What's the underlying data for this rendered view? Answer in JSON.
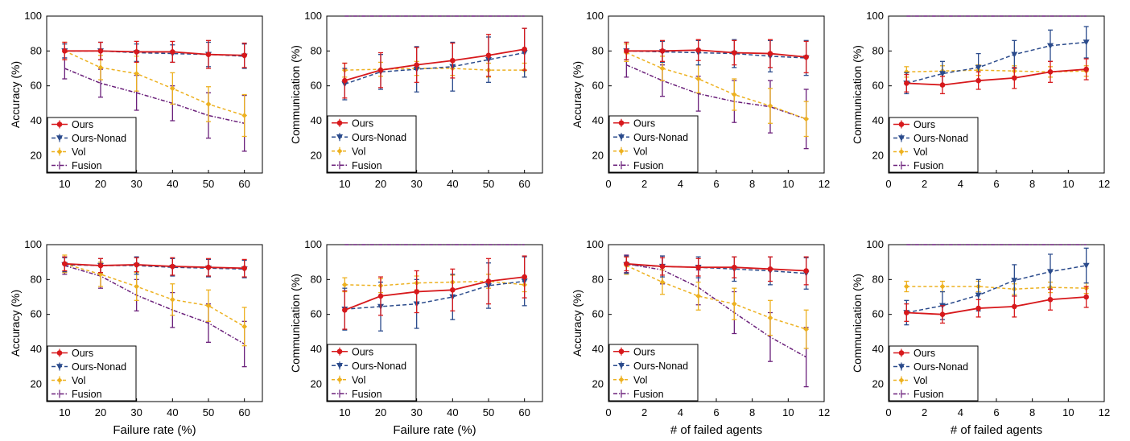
{
  "colors": {
    "ours": "#d7191c",
    "nonad": "#2b4b8c",
    "vol": "#edb120",
    "fusion": "#6a1f7a"
  },
  "legend_labels": [
    "Ours",
    "Ours-Nonad",
    "Vol",
    "Fusion"
  ],
  "chart_data": [
    {
      "type": "line",
      "xlabel": "",
      "ylabel": "Accuracy (%)",
      "x": [
        10,
        20,
        30,
        40,
        50,
        60
      ],
      "xlim": [
        5,
        65
      ],
      "xticks": [
        10,
        20,
        30,
        40,
        50,
        60
      ],
      "ylim": [
        10,
        100
      ],
      "yticks": [
        20,
        40,
        60,
        80,
        100
      ],
      "series": [
        {
          "name": "Ours",
          "values": [
            80,
            80,
            79.5,
            79.5,
            78,
            77.5
          ],
          "errors": [
            5,
            5,
            6,
            6,
            8,
            7
          ]
        },
        {
          "name": "Ours-Nonad",
          "values": [
            80,
            80,
            79,
            78.5,
            78,
            77
          ],
          "errors": [
            4,
            5,
            5,
            5,
            7,
            7
          ]
        },
        {
          "name": "Vol",
          "values": [
            80,
            70.5,
            67,
            58.5,
            49.5,
            43
          ],
          "errors": [
            5,
            7,
            10,
            9,
            10,
            12
          ]
        },
        {
          "name": "Fusion",
          "values": [
            70,
            61.5,
            56,
            50,
            43,
            38.5
          ],
          "errors": [
            6,
            8,
            10,
            10,
            13,
            16
          ]
        }
      ]
    },
    {
      "type": "line",
      "xlabel": "",
      "ylabel": "Communication (%)",
      "x": [
        10,
        20,
        30,
        40,
        50,
        60
      ],
      "xlim": [
        5,
        65
      ],
      "xticks": [
        10,
        20,
        30,
        40,
        50,
        60
      ],
      "ylim": [
        10,
        100
      ],
      "yticks": [
        20,
        40,
        60,
        80,
        100
      ],
      "series": [
        {
          "name": "Ours",
          "values": [
            63,
            69,
            72,
            74.5,
            77.5,
            81
          ],
          "errors": [
            10,
            10,
            10,
            10,
            12,
            12
          ]
        },
        {
          "name": "Ours-Nonad",
          "values": [
            61,
            68,
            69.5,
            71,
            75,
            79
          ],
          "errors": [
            9,
            10,
            13,
            14,
            13,
            14
          ]
        },
        {
          "name": "Vol",
          "values": [
            69,
            69.5,
            70,
            70,
            69,
            69
          ],
          "errors": [
            4,
            4,
            4,
            4,
            4,
            4
          ]
        },
        {
          "name": "Fusion",
          "values": [
            100,
            100,
            100,
            100,
            100,
            100
          ],
          "errors": [
            0,
            0,
            0,
            0,
            0,
            0
          ]
        }
      ]
    },
    {
      "type": "line",
      "xlabel": "",
      "ylabel": "Accuracy (%)",
      "x": [
        1,
        3,
        5,
        7,
        9,
        11
      ],
      "xlim": [
        0,
        12
      ],
      "xticks": [
        0,
        2,
        4,
        6,
        8,
        10,
        12
      ],
      "ylim": [
        10,
        100
      ],
      "yticks": [
        20,
        40,
        60,
        80,
        100
      ],
      "series": [
        {
          "name": "Ours",
          "values": [
            80,
            80,
            80.5,
            79,
            78.5,
            76.5
          ],
          "errors": [
            5,
            6,
            6,
            7,
            8,
            9
          ]
        },
        {
          "name": "Ours-Nonad",
          "values": [
            80,
            79.5,
            79,
            78.5,
            77,
            76
          ],
          "errors": [
            5,
            6,
            7,
            8,
            9,
            10
          ]
        },
        {
          "name": "Vol",
          "values": [
            79,
            70,
            64,
            55,
            48.5,
            41
          ],
          "errors": [
            5,
            7,
            8,
            9,
            10,
            10
          ]
        },
        {
          "name": "Fusion",
          "values": [
            72,
            63,
            55.5,
            51,
            48,
            41
          ],
          "errors": [
            7,
            9,
            10,
            12,
            15,
            17
          ]
        }
      ]
    },
    {
      "type": "line",
      "xlabel": "",
      "ylabel": "Communication (%)",
      "x": [
        1,
        3,
        5,
        7,
        9,
        11
      ],
      "xlim": [
        0,
        12
      ],
      "xticks": [
        0,
        2,
        4,
        6,
        8,
        10,
        12
      ],
      "ylim": [
        10,
        100
      ],
      "yticks": [
        20,
        40,
        60,
        80,
        100
      ],
      "series": [
        {
          "name": "Ours",
          "values": [
            61.5,
            60.5,
            63,
            64.5,
            68,
            69.5
          ],
          "errors": [
            5,
            5,
            5,
            6,
            6,
            6
          ]
        },
        {
          "name": "Ours-Nonad",
          "values": [
            61.5,
            67,
            70.5,
            78,
            83,
            85
          ],
          "errors": [
            6,
            7,
            8,
            8,
            9,
            9
          ]
        },
        {
          "name": "Vol",
          "values": [
            68,
            68.5,
            69,
            68.5,
            68,
            68.5
          ],
          "errors": [
            3,
            3,
            3,
            3,
            3,
            3
          ]
        },
        {
          "name": "Fusion",
          "values": [
            100,
            100,
            100,
            100,
            100,
            100
          ],
          "errors": [
            0,
            0,
            0,
            0,
            0,
            0
          ]
        }
      ]
    },
    {
      "type": "line",
      "xlabel": "Failure rate (%)",
      "ylabel": "Accuracy (%)",
      "x": [
        10,
        20,
        30,
        40,
        50,
        60
      ],
      "xlim": [
        5,
        65
      ],
      "xticks": [
        10,
        20,
        30,
        40,
        50,
        60
      ],
      "ylim": [
        10,
        100
      ],
      "yticks": [
        20,
        40,
        60,
        80,
        100
      ],
      "series": [
        {
          "name": "Ours",
          "values": [
            89,
            88,
            88.5,
            87.5,
            87,
            86.5
          ],
          "errors": [
            4,
            4,
            4,
            5,
            5,
            5
          ]
        },
        {
          "name": "Ours-Nonad",
          "values": [
            88.5,
            88,
            88,
            87,
            86.5,
            86
          ],
          "errors": [
            4,
            4,
            5,
            5,
            5,
            5
          ]
        },
        {
          "name": "Vol",
          "values": [
            89,
            83,
            76,
            68.5,
            65,
            53
          ],
          "errors": [
            5,
            7,
            8,
            9,
            9,
            11
          ]
        },
        {
          "name": "Fusion",
          "values": [
            88,
            82,
            71,
            62.5,
            55,
            43
          ],
          "errors": [
            5,
            7,
            9,
            10,
            11,
            13
          ]
        }
      ]
    },
    {
      "type": "line",
      "xlabel": "Failure rate (%)",
      "ylabel": "Communication (%)",
      "x": [
        10,
        20,
        30,
        40,
        50,
        60
      ],
      "xlim": [
        5,
        65
      ],
      "xticks": [
        10,
        20,
        30,
        40,
        50,
        60
      ],
      "ylim": [
        10,
        100
      ],
      "yticks": [
        20,
        40,
        60,
        80,
        100
      ],
      "series": [
        {
          "name": "Ours",
          "values": [
            62.5,
            70.5,
            73,
            74,
            79,
            81.5
          ],
          "errors": [
            11,
            11,
            12,
            12,
            13,
            12
          ]
        },
        {
          "name": "Ours-Nonad",
          "values": [
            63,
            64.5,
            66,
            70,
            76.5,
            79
          ],
          "errors": [
            12,
            14,
            14,
            13,
            13,
            14
          ]
        },
        {
          "name": "Vol",
          "values": [
            77,
            76.5,
            78,
            78.5,
            79,
            77
          ],
          "errors": [
            4,
            4,
            4,
            4,
            4,
            4
          ]
        },
        {
          "name": "Fusion",
          "values": [
            100,
            100,
            100,
            100,
            100,
            100
          ],
          "errors": [
            0,
            0,
            0,
            0,
            0,
            0
          ]
        }
      ]
    },
    {
      "type": "line",
      "xlabel": "# of failed agents",
      "ylabel": "Accuracy (%)",
      "x": [
        1,
        3,
        5,
        7,
        9,
        11
      ],
      "xlim": [
        0,
        12
      ],
      "xticks": [
        0,
        2,
        4,
        6,
        8,
        10,
        12
      ],
      "ylim": [
        10,
        100
      ],
      "yticks": [
        20,
        40,
        60,
        80,
        100
      ],
      "series": [
        {
          "name": "Ours",
          "values": [
            89,
            87.5,
            87,
            87,
            86,
            85
          ],
          "errors": [
            4,
            5,
            5,
            6,
            7,
            8
          ]
        },
        {
          "name": "Ours-Nonad",
          "values": [
            88.5,
            87.5,
            87,
            86,
            85,
            83.5
          ],
          "errors": [
            5,
            6,
            6,
            7,
            8,
            9
          ]
        },
        {
          "name": "Vol",
          "values": [
            88,
            78.5,
            70.5,
            66,
            58,
            51.5
          ],
          "errors": [
            5,
            7,
            8,
            9,
            10,
            11
          ]
        },
        {
          "name": "Fusion",
          "values": [
            89,
            85.5,
            75.5,
            61,
            47,
            35.5
          ],
          "errors": [
            5,
            8,
            10,
            12,
            14,
            17
          ]
        }
      ]
    },
    {
      "type": "line",
      "xlabel": "# of failed agents",
      "ylabel": "Communication (%)",
      "x": [
        1,
        3,
        5,
        7,
        9,
        11
      ],
      "xlim": [
        0,
        12
      ],
      "xticks": [
        0,
        2,
        4,
        6,
        8,
        10,
        12
      ],
      "ylim": [
        10,
        100
      ],
      "yticks": [
        20,
        40,
        60,
        80,
        100
      ],
      "series": [
        {
          "name": "Ours",
          "values": [
            61,
            60,
            63.5,
            64.5,
            68.5,
            70
          ],
          "errors": [
            5,
            5,
            5,
            6,
            6,
            6
          ]
        },
        {
          "name": "Ours-Nonad",
          "values": [
            61,
            65,
            71,
            79.5,
            84.5,
            88
          ],
          "errors": [
            7,
            8,
            9,
            9,
            10,
            10
          ]
        },
        {
          "name": "Vol",
          "values": [
            76,
            76,
            76,
            74.5,
            75.5,
            75
          ],
          "errors": [
            3,
            3,
            3,
            3,
            3,
            3
          ]
        },
        {
          "name": "Fusion",
          "values": [
            100,
            100,
            100,
            100,
            100,
            100
          ],
          "errors": [
            0,
            0,
            0,
            0,
            0,
            0
          ]
        }
      ]
    }
  ]
}
